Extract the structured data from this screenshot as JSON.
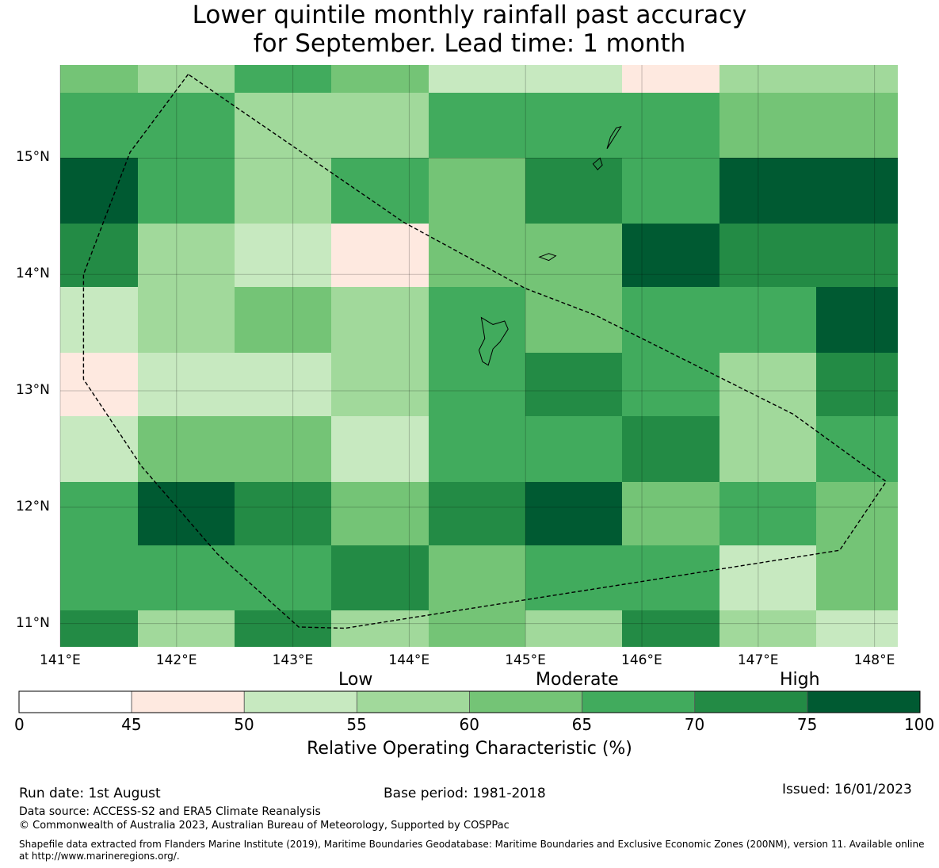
{
  "title": {
    "line1": "Lower quintile monthly rainfall past accuracy",
    "line2": "for September. Lead time: 1 month"
  },
  "map": {
    "lon_ticks": [
      "141°E",
      "142°E",
      "143°E",
      "144°E",
      "145°E",
      "146°E",
      "147°E",
      "148°E"
    ],
    "lat_ticks": [
      "15°N",
      "14°N",
      "13°N",
      "12°N",
      "11°N"
    ],
    "lon_tick_values": [
      141,
      142,
      143,
      144,
      145,
      146,
      147,
      148
    ],
    "lat_tick_values": [
      15,
      14,
      13,
      12,
      11
    ],
    "extent": {
      "lon": [
        141.0,
        148.2
      ],
      "lat": [
        10.8,
        15.8
      ]
    },
    "grid_lon_edges": [
      141.0,
      141.67,
      142.5,
      143.33,
      144.17,
      145.0,
      145.83,
      146.67,
      147.5,
      148.2
    ],
    "grid_lat_edges": [
      15.8,
      15.56,
      15.0,
      14.44,
      13.89,
      13.33,
      12.78,
      12.22,
      11.67,
      11.11,
      10.8
    ],
    "roc_values": [
      [
        62,
        57,
        67,
        62,
        53,
        53,
        47,
        57,
        57
      ],
      [
        67,
        67,
        57,
        57,
        67,
        67,
        67,
        62,
        62
      ],
      [
        78,
        67,
        57,
        67,
        62,
        72,
        67,
        78,
        78
      ],
      [
        72,
        57,
        53,
        47,
        62,
        62,
        78,
        72,
        72
      ],
      [
        53,
        57,
        62,
        57,
        67,
        62,
        67,
        67,
        78
      ],
      [
        47,
        53,
        53,
        57,
        67,
        72,
        67,
        57,
        72
      ],
      [
        53,
        62,
        62,
        53,
        67,
        67,
        72,
        57,
        67
      ],
      [
        67,
        78,
        72,
        62,
        72,
        78,
        62,
        67,
        62
      ],
      [
        67,
        67,
        67,
        72,
        62,
        67,
        67,
        53,
        62
      ],
      [
        72,
        57,
        72,
        57,
        62,
        57,
        72,
        57,
        53
      ]
    ],
    "boundary_outline": [
      [
        142.1,
        15.72
      ],
      [
        141.6,
        15.05
      ],
      [
        141.2,
        14.0
      ],
      [
        141.2,
        13.1
      ],
      [
        141.7,
        12.35
      ],
      [
        142.35,
        11.6
      ],
      [
        143.05,
        10.97
      ],
      [
        143.45,
        10.96
      ],
      [
        147.7,
        11.63
      ],
      [
        148.1,
        12.22
      ],
      [
        147.3,
        12.8
      ],
      [
        146.6,
        13.15
      ],
      [
        145.6,
        13.65
      ],
      [
        145.0,
        13.88
      ],
      [
        143.95,
        14.45
      ],
      [
        142.1,
        15.72
      ]
    ],
    "islands": [
      {
        "name": "Guam",
        "points": [
          [
            144.62,
            13.63
          ],
          [
            144.72,
            13.57
          ],
          [
            144.82,
            13.6
          ],
          [
            144.85,
            13.53
          ],
          [
            144.78,
            13.42
          ],
          [
            144.72,
            13.36
          ],
          [
            144.68,
            13.22
          ],
          [
            144.63,
            13.25
          ],
          [
            144.6,
            13.35
          ],
          [
            144.65,
            13.45
          ],
          [
            144.62,
            13.63
          ]
        ]
      },
      {
        "name": "Rota",
        "points": [
          [
            145.12,
            14.15
          ],
          [
            145.2,
            14.18
          ],
          [
            145.26,
            14.16
          ],
          [
            145.2,
            14.12
          ],
          [
            145.12,
            14.15
          ]
        ]
      },
      {
        "name": "Tinian",
        "points": [
          [
            145.58,
            14.95
          ],
          [
            145.64,
            15.0
          ],
          [
            145.66,
            14.94
          ],
          [
            145.62,
            14.9
          ],
          [
            145.58,
            14.95
          ]
        ]
      },
      {
        "name": "Saipan",
        "points": [
          [
            145.7,
            15.08
          ],
          [
            145.82,
            15.27
          ],
          [
            145.78,
            15.26
          ],
          [
            145.73,
            15.18
          ],
          [
            145.7,
            15.08
          ]
        ]
      }
    ]
  },
  "colorbar": {
    "ticks": [
      "0",
      "45",
      "50",
      "55",
      "60",
      "65",
      "70",
      "75",
      "100"
    ],
    "categories": [
      "Low",
      "Moderate",
      "High"
    ],
    "label": "Relative Operating Characteristic (%)",
    "colors": [
      "#ffffff",
      "#fee9e0",
      "#c7e9c0",
      "#a1d99b",
      "#74c476",
      "#41ab5d",
      "#238b45",
      "#005a32"
    ]
  },
  "footer": {
    "run_date": "Run date: 1st August",
    "base_period": "Base period: 1981-2018",
    "issued": "Issued: 16/01/2023",
    "data_source": "Data source: ACCESS-S2 and ERA5 Climate Reanalysis",
    "copyright": "© Commonwealth of Australia 2023, Australian Bureau of Meteorology, Supported by COSPPac",
    "shapefile_line1": "Shapefile data extracted from Flanders Marine Institute (2019), Maritime Boundaries Geodatabase: Maritime Boundaries and Exclusive Economic Zones (200NM), version 11. Available online",
    "shapefile_line2": "at http://www.marineregions.org/."
  }
}
